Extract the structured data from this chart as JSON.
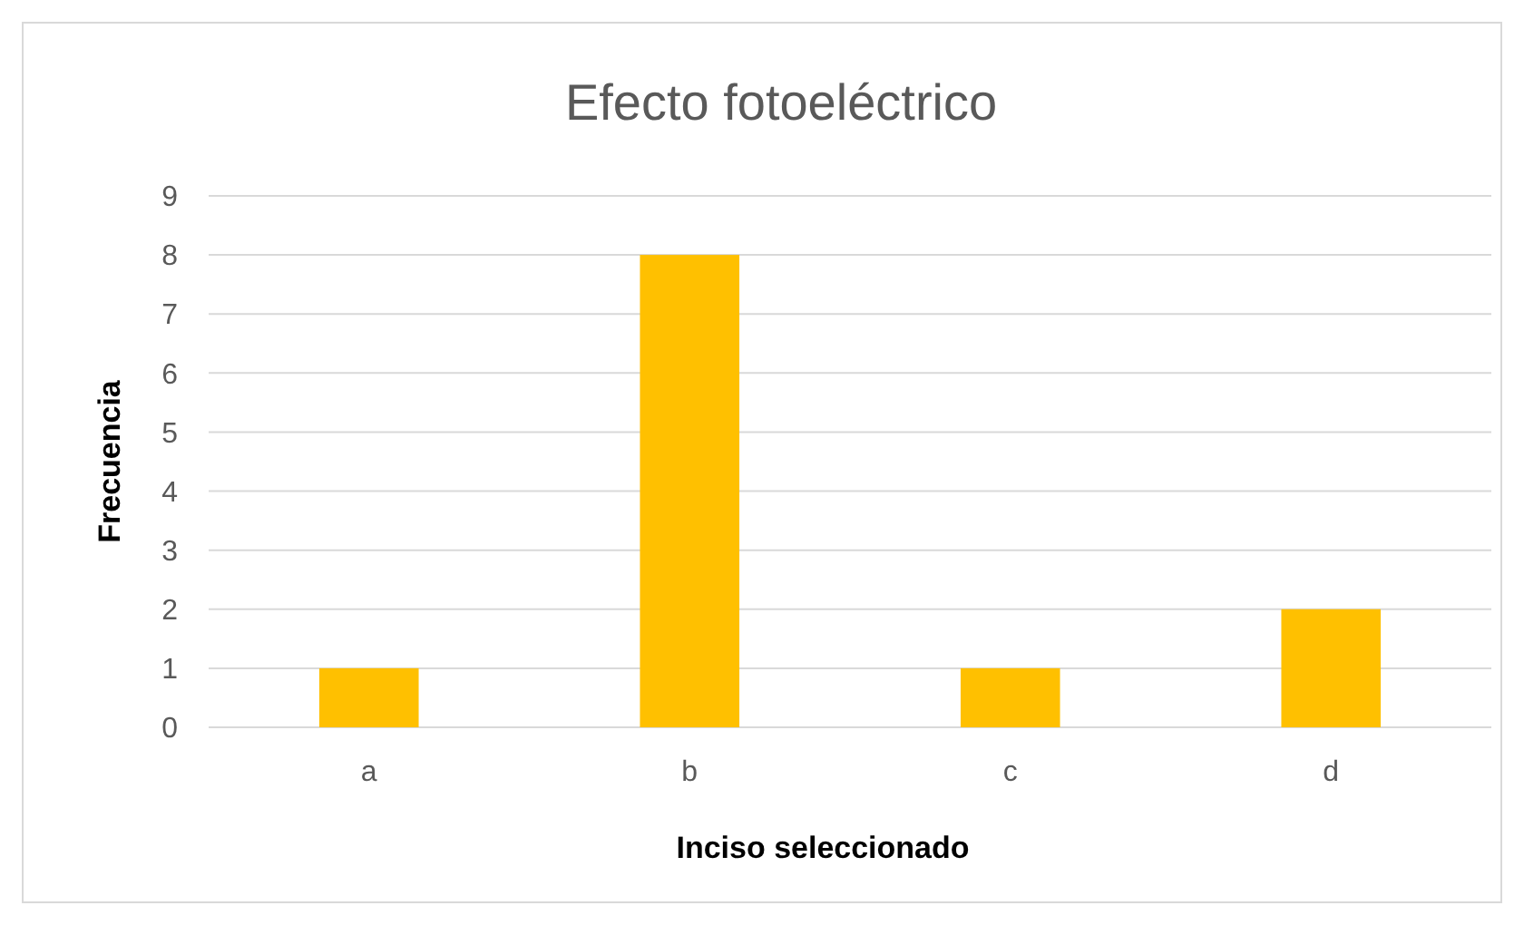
{
  "chart_data": {
    "type": "bar",
    "title": "Efecto fotoeléctrico",
    "xlabel": "Inciso seleccionado",
    "ylabel": "Frecuencia",
    "categories": [
      "a",
      "b",
      "c",
      "d"
    ],
    "values": [
      1,
      8,
      1,
      2
    ],
    "color": "#ffc000",
    "ylim": [
      0,
      9
    ],
    "yticks": [
      0,
      1,
      2,
      3,
      4,
      5,
      6,
      7,
      8,
      9
    ],
    "grid": "y"
  }
}
